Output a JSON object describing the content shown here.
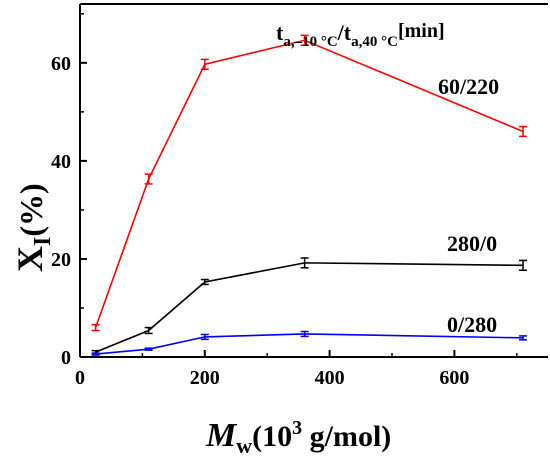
{
  "chart_data": {
    "type": "line",
    "xlim": [
      0,
      750
    ],
    "ylim": [
      0,
      72
    ],
    "x_ticks": [
      0,
      200,
      400,
      600
    ],
    "y_ticks": [
      0,
      20,
      40,
      60
    ],
    "x": [
      25,
      110,
      200,
      360,
      710
    ],
    "series": [
      {
        "name": "60/220",
        "color": "#ff0000",
        "values": [
          6,
          36.3,
          59.7,
          64.6,
          46.0
        ],
        "errors": [
          0.6,
          1.0,
          1.0,
          1.0,
          1.0
        ]
      },
      {
        "name": "280/0",
        "color": "#000000",
        "values": [
          1.0,
          5.4,
          15.3,
          19.2,
          18.7
        ],
        "errors": [
          0.3,
          0.6,
          0.5,
          1.0,
          1.0
        ]
      },
      {
        "name": "0/280",
        "color": "#0000ff",
        "values": [
          0.6,
          1.6,
          4.1,
          4.7,
          3.9
        ],
        "errors": [
          0.2,
          0.2,
          0.5,
          0.5,
          0.4
        ]
      }
    ],
    "legend_title": {
      "t1": "t",
      "s1": "a,–10 °C",
      "slash": "/",
      "t2": "t",
      "s2": "a,40 °C",
      "unit": "[min]"
    },
    "ylabel": {
      "main": "X",
      "sub": "I",
      "rest": "(%)"
    },
    "xlabel": {
      "main": "M",
      "sub": "w",
      "rest1": "(10",
      "sup": "3",
      "rest2": " g/mol)"
    }
  }
}
